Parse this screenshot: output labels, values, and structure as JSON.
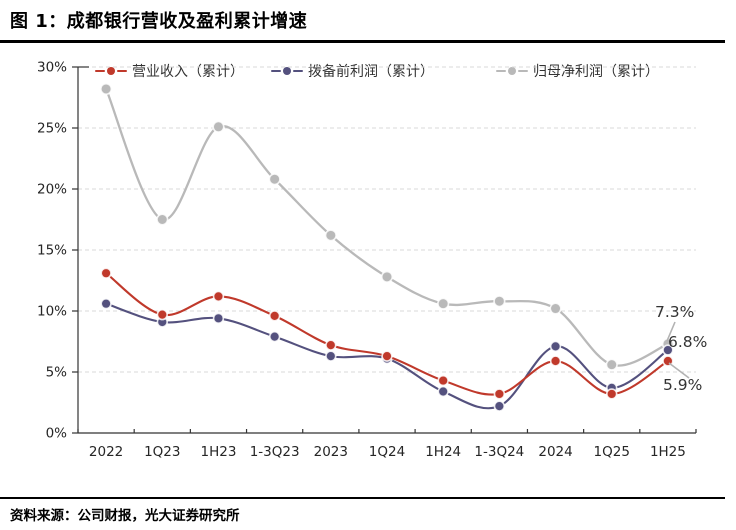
{
  "header": {
    "title": "图 1：成都银行营收及盈利累计增速"
  },
  "footer": {
    "source": "资料来源：公司财报，光大证券研究所"
  },
  "chart_data": {
    "type": "line",
    "title": "成都银行营收及盈利累计增速",
    "categories": [
      "2022",
      "1Q23",
      "1H23",
      "1-3Q23",
      "2023",
      "1Q24",
      "1H24",
      "1-3Q24",
      "2024",
      "1Q25",
      "1H25"
    ],
    "series": [
      {
        "name": "营业收入（累计）",
        "color": "#c0392b",
        "values": [
          13.1,
          9.7,
          11.2,
          9.6,
          7.2,
          6.3,
          4.3,
          3.2,
          5.9,
          3.2,
          5.9
        ]
      },
      {
        "name": "拨备前利润（累计）",
        "color": "#54517e",
        "values": [
          10.6,
          9.1,
          9.4,
          7.9,
          6.3,
          6.1,
          3.4,
          2.2,
          7.1,
          3.7,
          6.8
        ]
      },
      {
        "name": "归母净利润（累计）",
        "color": "#b9b9b9",
        "values": [
          28.2,
          17.5,
          25.1,
          20.8,
          16.2,
          12.8,
          10.6,
          10.8,
          10.2,
          5.6,
          7.3
        ]
      }
    ],
    "ylim": [
      0,
      30
    ],
    "ytick_step": 5,
    "ytick_labels": [
      "0%",
      "5%",
      "10%",
      "15%",
      "20%",
      "25%",
      "30%"
    ],
    "xlabel": "",
    "ylabel": "",
    "grid": "horizontal-dashed",
    "legend_position": "top",
    "line_style": "smooth-with-round-markers",
    "annotations": [
      {
        "text": "7.3%",
        "x": 655,
        "y": 317,
        "leader": {
          "x1": 675,
          "y1": 322,
          "x2": 667,
          "y2": 341
        }
      },
      {
        "text": "6.8%",
        "x": 668,
        "y": 347,
        "leader": null
      },
      {
        "text": "5.9%",
        "x": 663,
        "y": 390,
        "leader": {
          "x1": 669,
          "y1": 363,
          "x2": 689,
          "y2": 378
        }
      }
    ],
    "colors": {
      "grid": "#d9d9d9",
      "axis": "#333333",
      "tick_label": "#262626",
      "annotation_text": "#333333",
      "annotation_leader": "#b3b3b3"
    }
  }
}
